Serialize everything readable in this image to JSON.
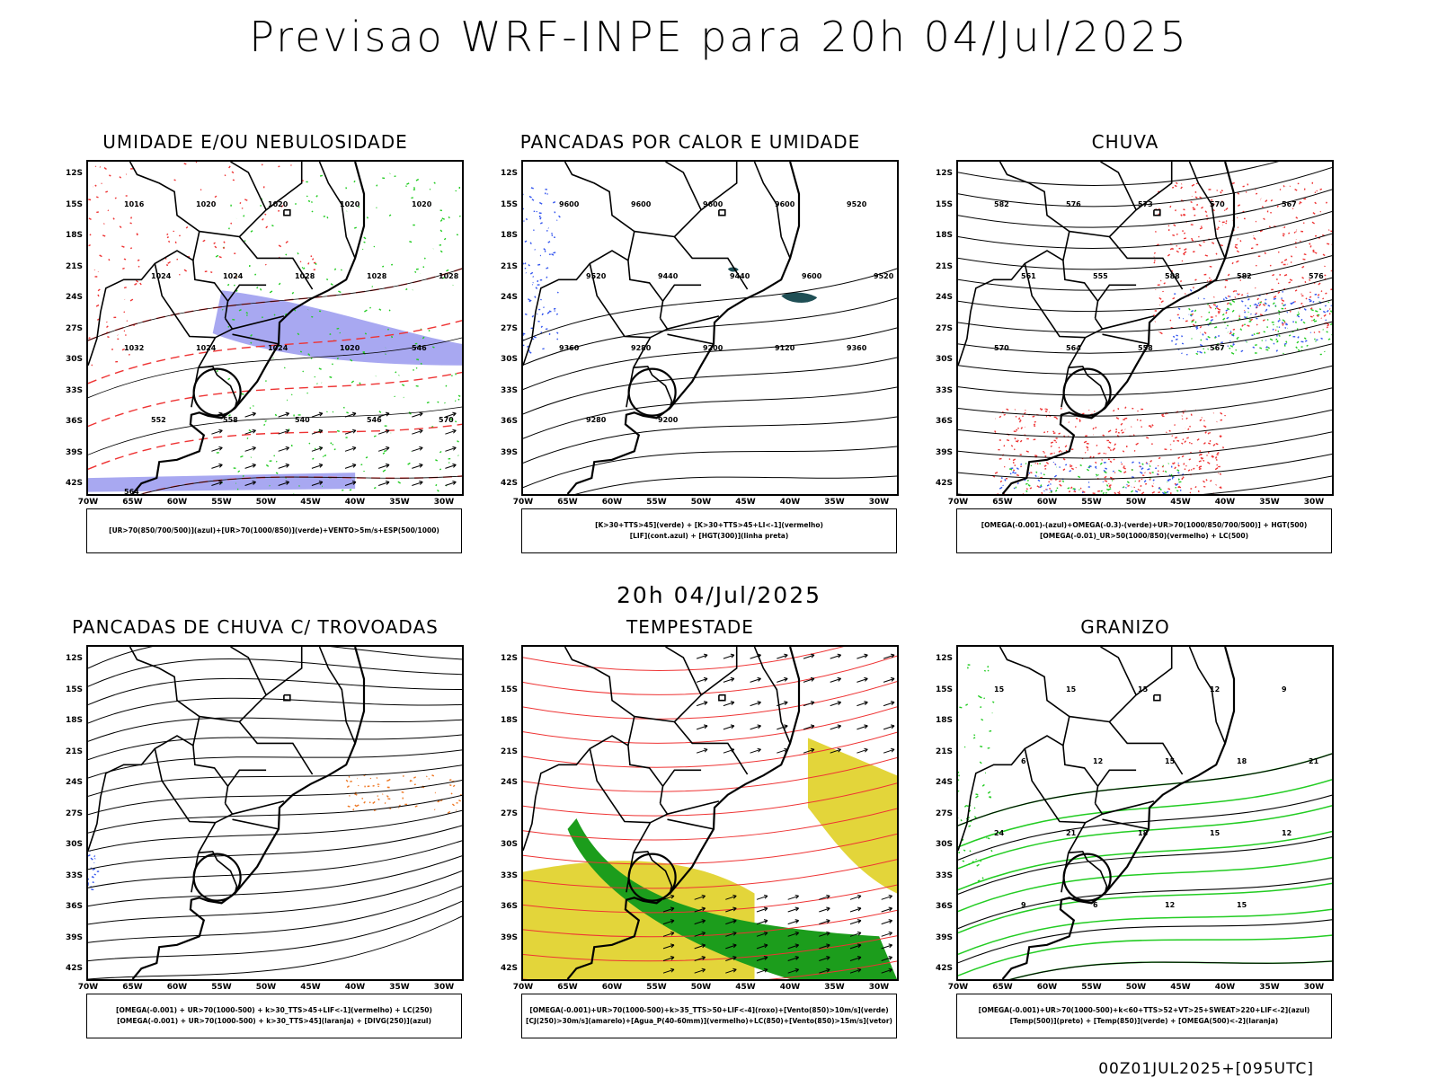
{
  "header": {
    "title": "Previsao WRF-INPE  para 20h 04/Jul/2025",
    "subtitle": "20h 04/Jul/2025",
    "footer": "00Z01JUL2025+[095UTC]"
  },
  "axes": {
    "lat_labels": [
      "12S",
      "15S",
      "18S",
      "21S",
      "24S",
      "27S",
      "30S",
      "33S",
      "36S",
      "39S",
      "42S"
    ],
    "lon_labels": [
      "70W",
      "65W",
      "60W",
      "55W",
      "50W",
      "45W",
      "40W",
      "35W",
      "30W"
    ]
  },
  "colors": {
    "green": "#22cc22",
    "red": "#ee3333",
    "blue": "#3355ee",
    "lavender": "#9999ee",
    "yellow": "#e3d53a",
    "orange": "#ee7722",
    "teal": "#1f4f55"
  },
  "panels": [
    {
      "title": "UMIDADE E/OU NEBULOSIDADE",
      "legend": [
        "[UR>70(850/700/500)](azul)+[UR>70(1000/850)](verde)+VENTO>5m/s+ESP(500/1000)"
      ],
      "labels": [
        "1016",
        "1020",
        "1020",
        "1020",
        "1020",
        "1024",
        "1024",
        "1028",
        "1028",
        "1028",
        "1032",
        "1024",
        "1024",
        "1020",
        "546",
        "552",
        "558",
        "540",
        "546",
        "570",
        "564"
      ]
    },
    {
      "title": "PANCADAS POR CALOR E UMIDADE",
      "legend": [
        "[K>30+TTS>45](verde) + [K>30+TTS>45+LI<-1](vermelho)",
        "[LIF](cont.azul) + [HGT(300)](linha preta)"
      ],
      "labels": [
        "9600",
        "9600",
        "9600",
        "9600",
        "9520",
        "9520",
        "9440",
        "9440",
        "9600",
        "9520",
        "9360",
        "9280",
        "9200",
        "9120",
        "9360",
        "9280",
        "9200"
      ]
    },
    {
      "title": "CHUVA",
      "legend": [
        "[OMEGA(-0.001)-(azul)+OMEGA(-0.3)-(verde)+UR>70(1000/850/700/500)] + HGT(500)",
        "[OMEGA(-0.01)_UR>50(1000/850)(vermelho) + LC(500)"
      ],
      "labels": [
        "582",
        "576",
        "573",
        "570",
        "567",
        "561",
        "555",
        "588",
        "582",
        "576",
        "570",
        "564",
        "558",
        "567"
      ]
    },
    {
      "title": "PANCADAS DE CHUVA C/ TROVOADAS",
      "legend": [
        "[OMEGA(-0.001) + UR>70(1000-500) + k>30_TTS>45+LIF<-1](vermelho) + LC(250)",
        "[OMEGA(-0.001) + UR>70(1000-500) + k>30_TTS>45](laranja) + [DIVG(250)](azul)"
      ],
      "labels": []
    },
    {
      "title": "TEMPESTADE",
      "legend": [
        "[OMEGA(-0.001)+UR>70(1000-500)+k>35_TTS>50+LIF<-4](roxo)+[Vento(850)>10m/s](verde)",
        "[CJ(250)>30m/s](amarelo)+[Agua_P(40-60mm)](vermelho)+LC(850)+[Vento(850)>15m/s](vetor)"
      ],
      "labels": []
    },
    {
      "title": "GRANIZO",
      "legend": [
        "[OMEGA(-0.001)+UR>70(1000-500)+k<60+TTS>52+VT>25+SWEAT>220+LIF<-2](azul)",
        "[Temp(500)](preto) + [Temp(850)](verde) + [OMEGA(500)<-2](laranja)"
      ],
      "labels": [
        "15",
        "15",
        "15",
        "12",
        "9",
        "6",
        "12",
        "15",
        "18",
        "21",
        "24",
        "21",
        "18",
        "15",
        "12",
        "9",
        "6",
        "12",
        "15"
      ]
    }
  ]
}
